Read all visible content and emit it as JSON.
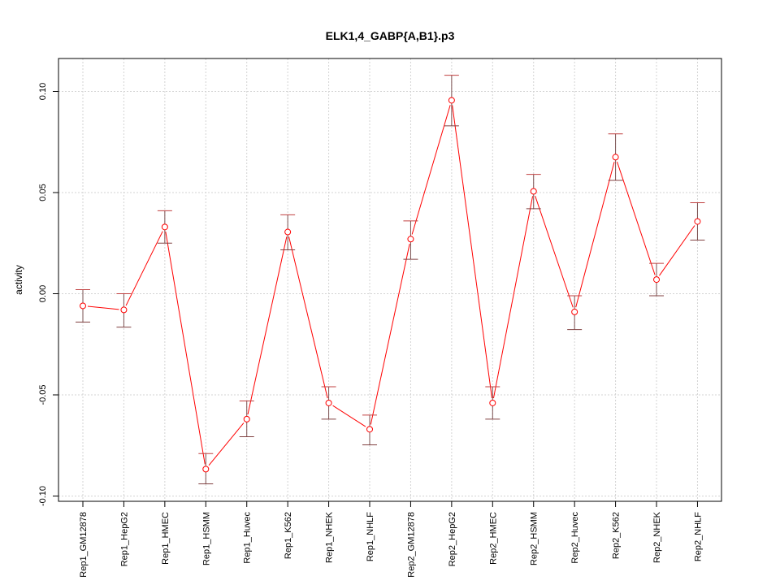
{
  "chart_data": {
    "type": "line",
    "title": "ELK1,4_GABP{A,B1}.p3",
    "xlabel": "",
    "ylabel": "activity",
    "ylim": [
      -0.1,
      0.1
    ],
    "yticks": [
      -0.1,
      -0.05,
      0.0,
      0.05,
      0.1
    ],
    "ytick_labels": [
      "-0.10",
      "-0.05",
      "0.00",
      "0.05",
      "0.10"
    ],
    "grid": true,
    "color": "#ff0000",
    "categories": [
      "Rep1_GM12878",
      "Rep1_HepG2",
      "Rep1_HMEC",
      "Rep1_HSMM",
      "Rep1_Huvec",
      "Rep1_K562",
      "Rep1_NHEK",
      "Rep1_NHLF",
      "Rep2_GM12878",
      "Rep2_HepG2",
      "Rep2_HMEC",
      "Rep2_HSMM",
      "Rep2_Huvec",
      "Rep2_K562",
      "Rep2_NHEK",
      "Rep2_NHLF"
    ],
    "values": [
      -0.006,
      -0.008,
      0.033,
      -0.0867,
      -0.062,
      0.0305,
      -0.054,
      -0.067,
      0.027,
      0.0956,
      -0.054,
      0.0506,
      -0.009,
      0.0675,
      0.007,
      0.0357
    ],
    "upper": [
      0.002,
      0.0,
      0.041,
      -0.079,
      -0.053,
      0.039,
      -0.046,
      -0.06,
      0.036,
      0.108,
      -0.046,
      0.059,
      -0.001,
      0.079,
      0.015,
      0.045
    ],
    "lower": [
      -0.014,
      -0.0165,
      0.025,
      -0.094,
      -0.0707,
      0.0217,
      -0.062,
      -0.0747,
      0.017,
      0.083,
      -0.062,
      0.042,
      -0.0177,
      0.056,
      -0.001,
      0.0265
    ]
  }
}
